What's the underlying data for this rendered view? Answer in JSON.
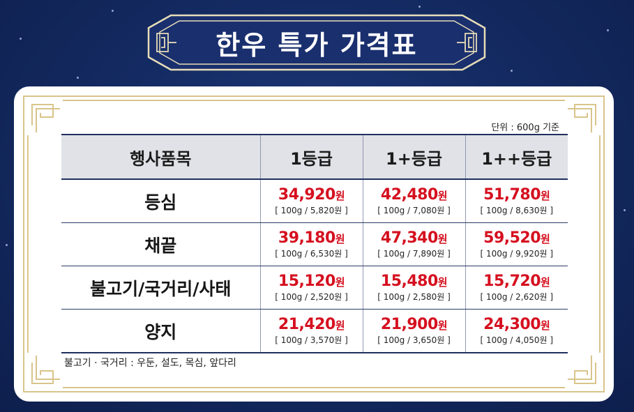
{
  "title": "한우 특가 가격표",
  "unit_note": "단위 : 600g 기준",
  "columns": [
    "행사품목",
    "1등급",
    "1+등급",
    "1++등급"
  ],
  "currency_suffix": "원",
  "rows": [
    {
      "name": "등심",
      "prices": [
        {
          "price": "34,920",
          "per100": "[ 100g / 5,820원 ]"
        },
        {
          "price": "42,480",
          "per100": "[ 100g / 7,080원 ]"
        },
        {
          "price": "51,780",
          "per100": "[ 100g / 8,630원 ]"
        }
      ]
    },
    {
      "name": "채끝",
      "prices": [
        {
          "price": "39,180",
          "per100": "[ 100g / 6,530원 ]"
        },
        {
          "price": "47,340",
          "per100": "[ 100g / 7,890원 ]"
        },
        {
          "price": "59,520",
          "per100": "[ 100g / 9,920원 ]"
        }
      ]
    },
    {
      "name": "불고기/국거리/사태",
      "prices": [
        {
          "price": "15,120",
          "per100": "[ 100g / 2,520원 ]"
        },
        {
          "price": "15,480",
          "per100": "[ 100g / 2,580원 ]"
        },
        {
          "price": "15,720",
          "per100": "[ 100g / 2,620원 ]"
        }
      ]
    },
    {
      "name": "양지",
      "prices": [
        {
          "price": "21,420",
          "per100": "[ 100g / 3,570원 ]"
        },
        {
          "price": "21,900",
          "per100": "[ 100g / 3,650원 ]"
        },
        {
          "price": "24,300",
          "per100": "[ 100g / 4,050원 ]"
        }
      ]
    }
  ],
  "footnote": "불고기 · 국거리 : 우둔, 설도, 목심, 앞다리",
  "colors": {
    "background": "#142b63",
    "title_plate": "#1a2f6e",
    "frame_gold": "#d9c48a",
    "price_red": "#d5101f",
    "header_gray": "#e0e2e7"
  }
}
